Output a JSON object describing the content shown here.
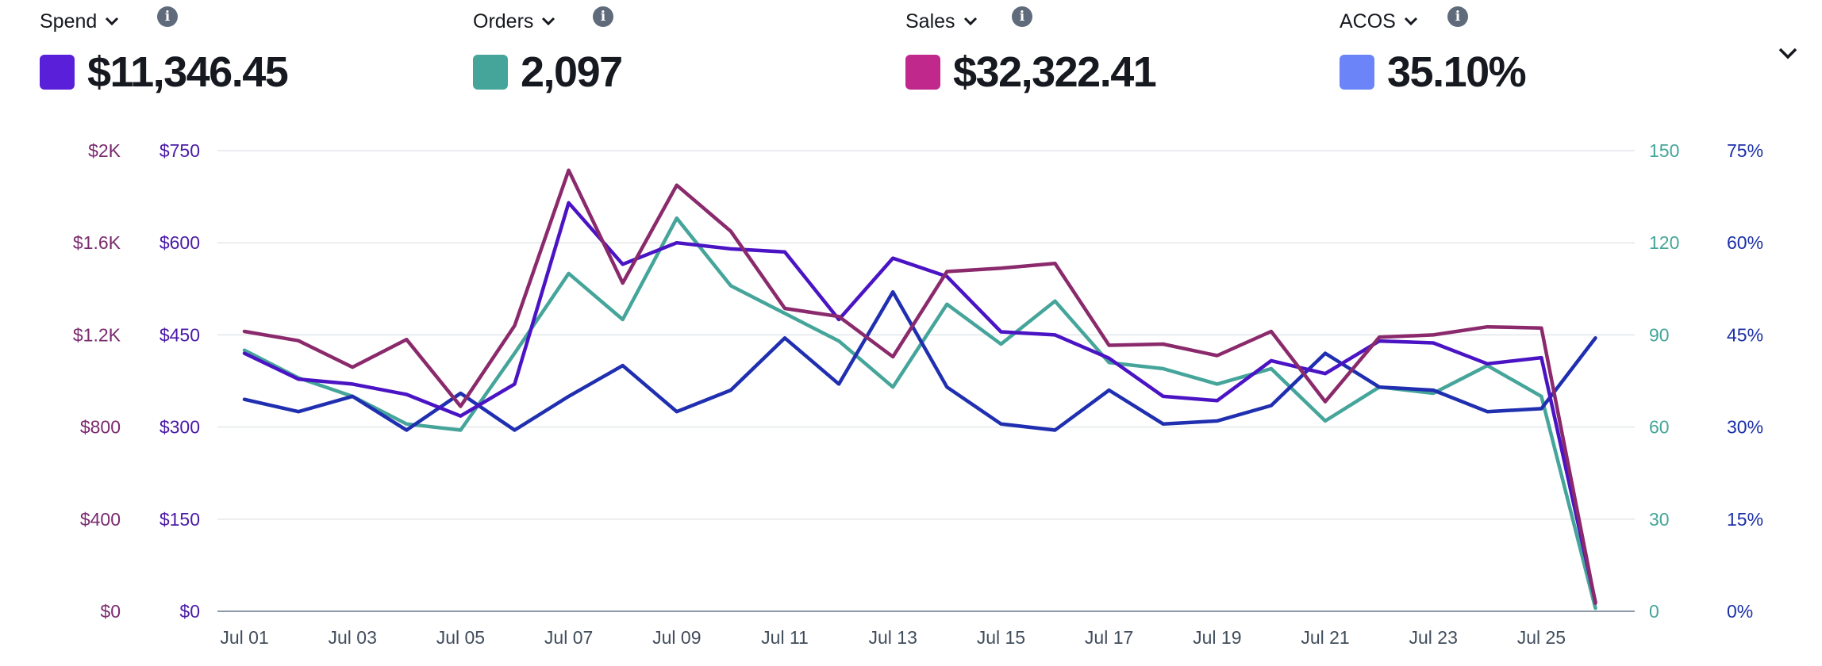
{
  "metrics": [
    {
      "label": "Spend",
      "value": "$11,346.45",
      "color": "#5a1fd8"
    },
    {
      "label": "Orders",
      "value": "2,097",
      "color": "#45a59a"
    },
    {
      "label": "Sales",
      "value": "$32,322.41",
      "color": "#c0288c"
    },
    {
      "label": "ACOS",
      "value": "35.10%",
      "color": "#6b85f8"
    }
  ],
  "info_glyph": "i",
  "chart_data": {
    "type": "line",
    "categories": [
      "Jul 01",
      "Jul 02",
      "Jul 03",
      "Jul 04",
      "Jul 05",
      "Jul 06",
      "Jul 07",
      "Jul 08",
      "Jul 09",
      "Jul 10",
      "Jul 11",
      "Jul 12",
      "Jul 13",
      "Jul 14",
      "Jul 15",
      "Jul 16",
      "Jul 17",
      "Jul 18",
      "Jul 19",
      "Jul 20",
      "Jul 21",
      "Jul 22",
      "Jul 23",
      "Jul 24",
      "Jul 25",
      "Jul 26"
    ],
    "x_tick_labels": [
      "Jul 01",
      "Jul 03",
      "Jul 05",
      "Jul 07",
      "Jul 09",
      "Jul 11",
      "Jul 13",
      "Jul 15",
      "Jul 17",
      "Jul 19",
      "Jul 21",
      "Jul 23",
      "Jul 25"
    ],
    "axes": {
      "sales": {
        "ticks": [
          "$0",
          "$400",
          "$800",
          "$1.2K",
          "$1.6K",
          "$2K"
        ],
        "range": [
          0,
          2000
        ],
        "color": "#7a2a6e"
      },
      "spend": {
        "ticks": [
          "$0",
          "$150",
          "$300",
          "$450",
          "$600",
          "$750"
        ],
        "range": [
          0,
          750
        ],
        "color": "#4a1aa8"
      },
      "orders": {
        "ticks": [
          "0",
          "30",
          "60",
          "90",
          "120",
          "150"
        ],
        "range": [
          0,
          150
        ],
        "color": "#45a59a"
      },
      "acos": {
        "ticks": [
          "0%",
          "15%",
          "30%",
          "45%",
          "60%",
          "75%"
        ],
        "range": [
          0,
          75
        ],
        "color": "#1a2fa8"
      }
    },
    "series": [
      {
        "name": "Orders",
        "axis": "orders",
        "color": "#45a59a",
        "values": [
          85,
          76,
          70,
          61,
          59,
          84,
          110,
          95,
          128,
          106,
          97,
          88,
          73,
          100,
          87,
          101,
          81,
          79,
          74,
          79,
          62,
          73,
          71,
          80,
          70,
          1
        ]
      },
      {
        "name": "ACOS",
        "axis": "acos",
        "color": "#1f2fb0",
        "values": [
          34.5,
          32.5,
          35,
          29.5,
          35.5,
          29.5,
          35,
          40,
          32.5,
          36,
          44.5,
          37,
          52,
          36.5,
          30.5,
          29.5,
          36,
          30.5,
          31,
          33.5,
          42,
          36.5,
          36,
          32.5,
          33,
          44.5
        ]
      },
      {
        "name": "Spend",
        "axis": "spend",
        "color": "#4a14c4",
        "values": [
          420,
          378,
          370,
          353,
          318,
          370,
          665,
          565,
          600,
          590,
          585,
          475,
          575,
          545,
          455,
          450,
          412,
          350,
          343,
          408,
          387,
          440,
          437,
          403,
          413,
          15
        ]
      },
      {
        "name": "Sales",
        "axis": "sales",
        "color": "#8a2a6c",
        "values": [
          1215,
          1175,
          1060,
          1180,
          890,
          1240,
          1915,
          1425,
          1850,
          1650,
          1315,
          1280,
          1105,
          1475,
          1490,
          1510,
          1155,
          1160,
          1110,
          1215,
          910,
          1190,
          1200,
          1235,
          1230,
          35
        ]
      }
    ]
  }
}
